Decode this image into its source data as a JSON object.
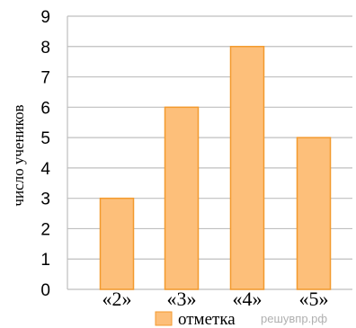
{
  "chart_data": {
    "type": "bar",
    "categories": [
      "«2»",
      "«3»",
      "«4»",
      "«5»"
    ],
    "series": [
      {
        "name": "отметка",
        "values": [
          3,
          6,
          8,
          5
        ]
      }
    ],
    "ylabel": "число учеников",
    "xlabel": "",
    "ylim": [
      0,
      9
    ],
    "yticks": [
      0,
      1,
      2,
      3,
      4,
      5,
      6,
      7,
      8,
      9
    ],
    "grid": true,
    "legend_position": "bottom",
    "colors": {
      "bar_fill": "#FDBF7A",
      "bar_stroke": "#F39A2E",
      "grid": "#BFBFBF"
    }
  },
  "watermark": "решувпр.рф"
}
